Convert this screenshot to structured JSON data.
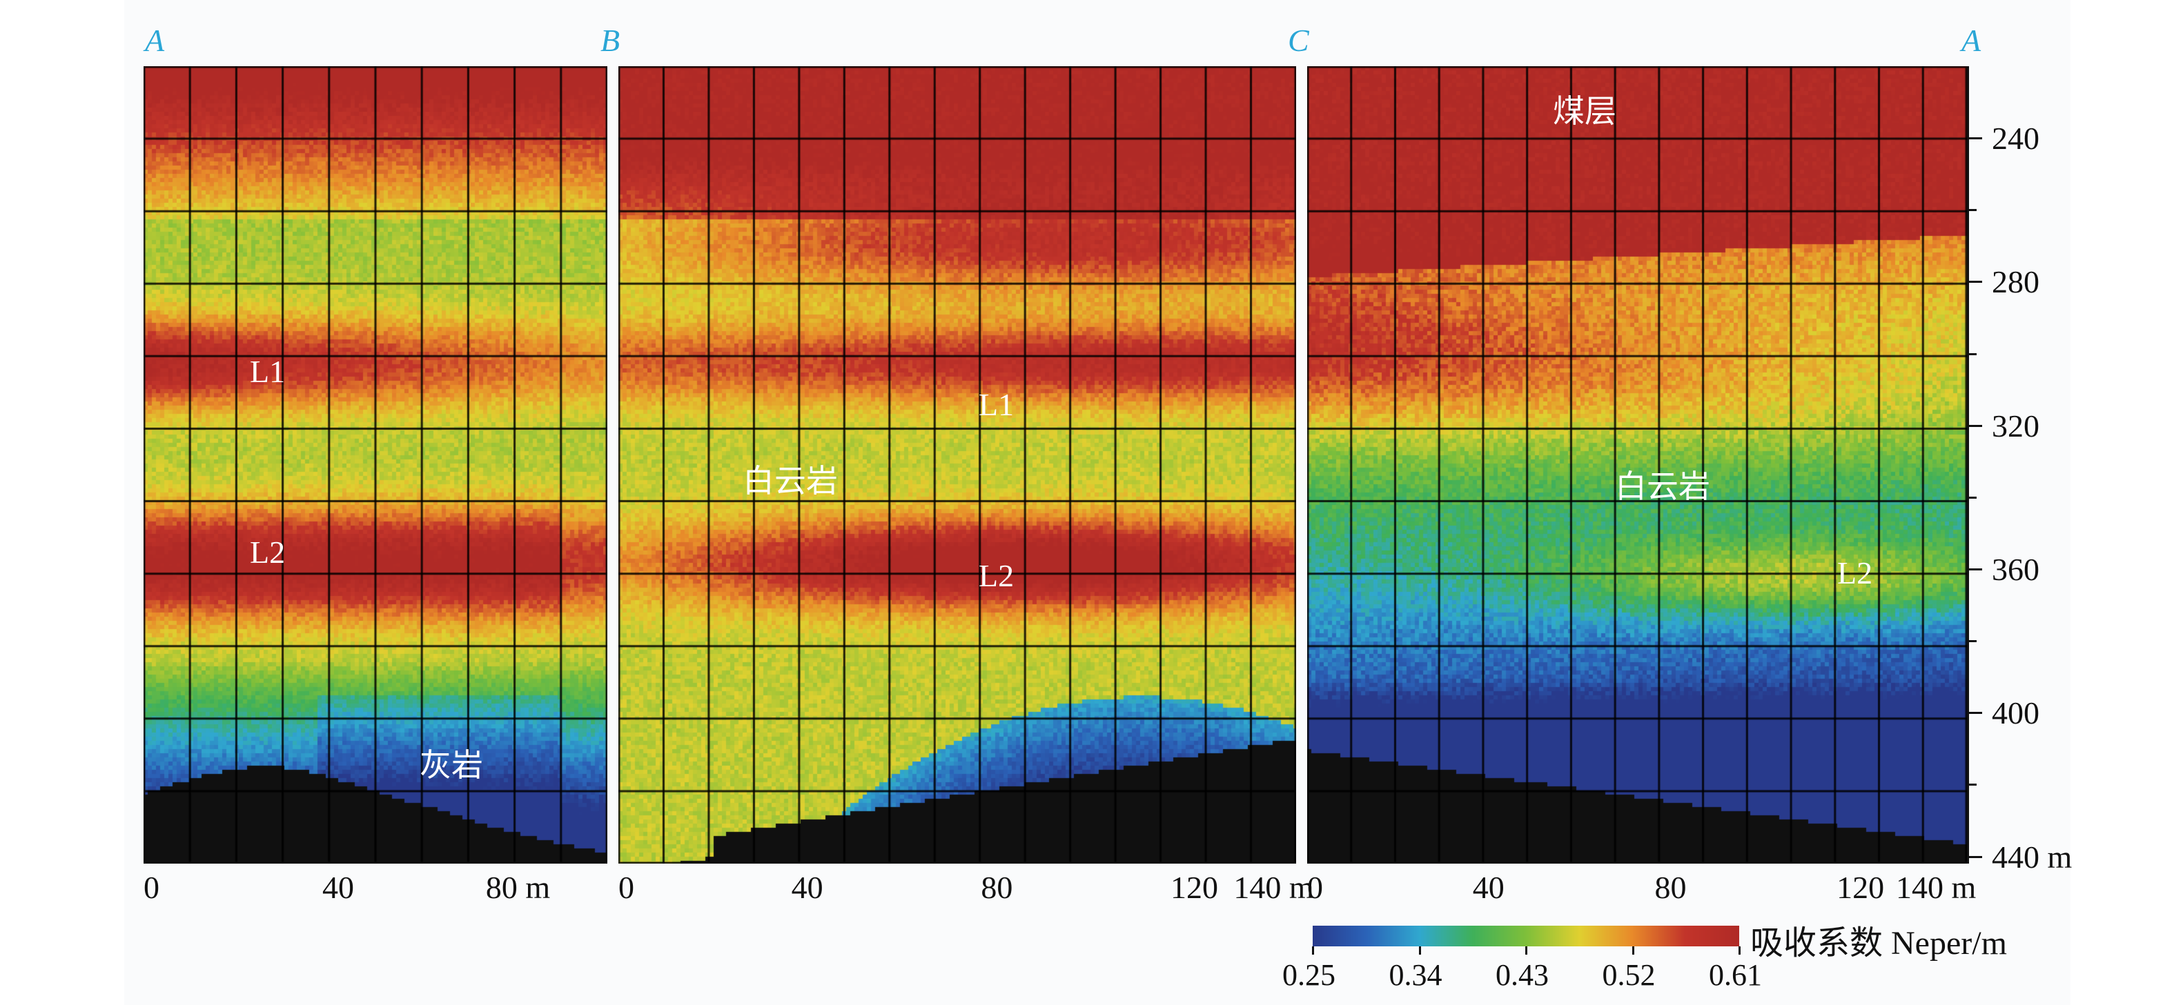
{
  "corner_labels": [
    "A",
    "B",
    "C",
    "A"
  ],
  "annotations": {
    "panel1": [
      {
        "text": "L1",
        "script": "latin"
      },
      {
        "text": "L2",
        "script": "latin"
      },
      {
        "text": "灰岩",
        "script": "cjk"
      }
    ],
    "panel2": [
      {
        "text": "L1",
        "script": "latin"
      },
      {
        "text": "白云岩",
        "script": "cjk"
      },
      {
        "text": "L2",
        "script": "latin"
      }
    ],
    "panel3": [
      {
        "text": "煤层",
        "script": "cjk"
      },
      {
        "text": "白云岩",
        "script": "cjk"
      },
      {
        "text": "L2",
        "script": "latin"
      }
    ]
  },
  "colors": {
    "colormap": [
      "#283a8c",
      "#2b63b8",
      "#30a8cf",
      "#3fb05a",
      "#7fbf3a",
      "#e0d030",
      "#e88a2a",
      "#c2342a",
      "#b02a26"
    ],
    "corner_label": "#2aa6d6",
    "grid": "#000000",
    "no_data": "#101010"
  },
  "chart_data": {
    "type": "heatmap",
    "title": "",
    "colorbar": {
      "label": "吸收系数 Neper/m",
      "ticks": [
        "0.25",
        "0.34",
        "0.43",
        "0.52",
        "0.61"
      ],
      "range": [
        0.25,
        0.61
      ]
    },
    "depth_axis": {
      "ticks": [
        "240",
        "280",
        "320",
        "360",
        "400",
        "440 m"
      ],
      "range": [
        220,
        442
      ]
    },
    "layers": [
      {
        "name": "L1",
        "center_depth": 302,
        "peak": 0.6
      },
      {
        "name": "L2",
        "center_depth": 360,
        "peak": 0.61
      },
      {
        "name": "煤层",
        "bottom_depth": 280,
        "value": 0.61
      }
    ],
    "panels": [
      {
        "id": "A-B",
        "x_ticks": [
          "0",
          "40",
          "80 m"
        ],
        "x_range": [
          0,
          95
        ]
      },
      {
        "id": "B-C",
        "x_ticks": [
          "0",
          "40",
          "80",
          "120",
          "140 m"
        ],
        "x_range": [
          0,
          143
        ]
      },
      {
        "id": "C-A",
        "x_ticks": [
          "0",
          "40",
          "80",
          "120",
          "140 m"
        ],
        "x_range": [
          0,
          145
        ]
      }
    ]
  }
}
